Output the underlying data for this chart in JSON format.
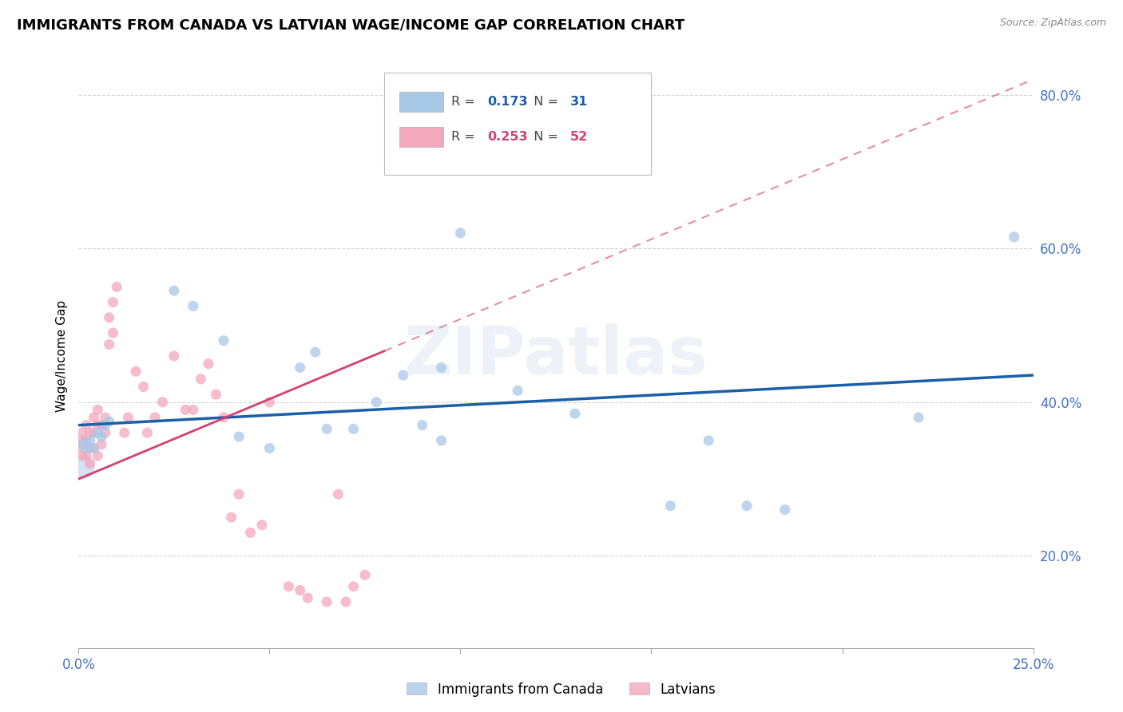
{
  "title": "IMMIGRANTS FROM CANADA VS LATVIAN WAGE/INCOME GAP CORRELATION CHART",
  "source": "Source: ZipAtlas.com",
  "ylabel": "Wage/Income Gap",
  "xlim": [
    0.0,
    0.25
  ],
  "ylim": [
    0.08,
    0.84
  ],
  "yticks": [
    0.2,
    0.4,
    0.6,
    0.8
  ],
  "ytick_labels": [
    "20.0%",
    "40.0%",
    "60.0%",
    "80.0%"
  ],
  "blue_label": "Immigrants from Canada",
  "pink_label": "Latvians",
  "blue_R": "0.173",
  "blue_N": "31",
  "pink_R": "0.253",
  "pink_N": "52",
  "blue_color": "#a8c8e8",
  "pink_color": "#f4a8bc",
  "trend_blue_color": "#1a5fa8",
  "trend_pink_color": "#d44070",
  "watermark": "ZIPatlas",
  "blue_points_x": [
    0.001,
    0.002,
    0.003,
    0.004,
    0.005,
    0.006,
    0.007,
    0.008,
    0.025,
    0.03,
    0.038,
    0.042,
    0.05,
    0.058,
    0.062,
    0.065,
    0.072,
    0.078,
    0.085,
    0.095,
    0.1,
    0.115,
    0.13,
    0.155,
    0.165,
    0.175,
    0.185,
    0.22,
    0.245,
    0.09,
    0.095
  ],
  "blue_points_y": [
    0.345,
    0.34,
    0.35,
    0.34,
    0.36,
    0.355,
    0.37,
    0.375,
    0.545,
    0.525,
    0.48,
    0.355,
    0.34,
    0.445,
    0.465,
    0.365,
    0.365,
    0.4,
    0.435,
    0.445,
    0.62,
    0.415,
    0.385,
    0.265,
    0.35,
    0.265,
    0.26,
    0.38,
    0.615,
    0.37,
    0.35
  ],
  "pink_points_x": [
    0.0,
    0.001,
    0.001,
    0.001,
    0.002,
    0.002,
    0.002,
    0.003,
    0.003,
    0.003,
    0.004,
    0.004,
    0.004,
    0.005,
    0.005,
    0.005,
    0.006,
    0.006,
    0.007,
    0.007,
    0.008,
    0.008,
    0.009,
    0.009,
    0.01,
    0.012,
    0.013,
    0.015,
    0.017,
    0.018,
    0.02,
    0.022,
    0.025,
    0.028,
    0.03,
    0.032,
    0.034,
    0.036,
    0.038,
    0.04,
    0.042,
    0.045,
    0.048,
    0.05,
    0.055,
    0.058,
    0.06,
    0.065,
    0.068,
    0.07,
    0.072,
    0.075
  ],
  "pink_points_y": [
    0.34,
    0.33,
    0.35,
    0.36,
    0.33,
    0.35,
    0.37,
    0.32,
    0.34,
    0.36,
    0.34,
    0.36,
    0.38,
    0.33,
    0.37,
    0.39,
    0.345,
    0.37,
    0.36,
    0.38,
    0.475,
    0.51,
    0.49,
    0.53,
    0.55,
    0.36,
    0.38,
    0.44,
    0.42,
    0.36,
    0.38,
    0.4,
    0.46,
    0.39,
    0.39,
    0.43,
    0.45,
    0.41,
    0.38,
    0.25,
    0.28,
    0.23,
    0.24,
    0.4,
    0.16,
    0.155,
    0.145,
    0.14,
    0.28,
    0.14,
    0.16,
    0.175
  ],
  "background_color": "#ffffff",
  "grid_color": "#d0d0d0",
  "axis_label_color": "#4472c4",
  "title_fontsize": 13
}
